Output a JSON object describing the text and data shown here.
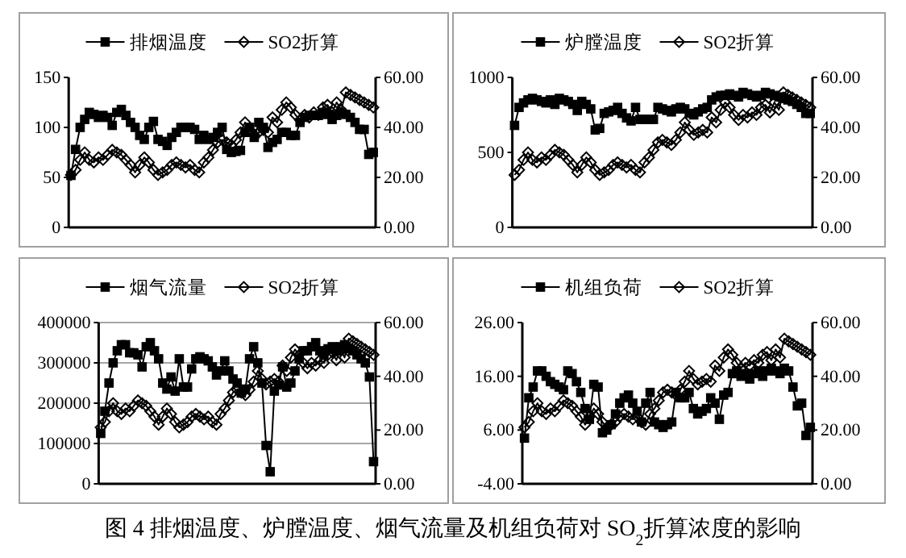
{
  "chart_data": [
    {
      "type": "line",
      "legend": "top",
      "categories": [
        null,
        null,
        null,
        null,
        null,
        null,
        null,
        null,
        null,
        null,
        null,
        null,
        null,
        null,
        null,
        null,
        null,
        null,
        null,
        null,
        null,
        null,
        null,
        null,
        null,
        null,
        null,
        null,
        null,
        null,
        null,
        null,
        null,
        null,
        null,
        null,
        null,
        null,
        null,
        null,
        null,
        null,
        null,
        null,
        null,
        null,
        null,
        null,
        null,
        null,
        null,
        null,
        null,
        null,
        null,
        null,
        null,
        null,
        null,
        null,
        null,
        null,
        null,
        null,
        null,
        null,
        null
      ],
      "ylim": [
        0,
        150
      ],
      "yticks": [
        0,
        50,
        100,
        150
      ],
      "y2lim": [
        0,
        60
      ],
      "y2ticks": [
        {
          "value": 0,
          "label": "0.00"
        },
        {
          "value": 20,
          "label": "20.00"
        },
        {
          "value": 40,
          "label": "40.00"
        },
        {
          "value": 60,
          "label": "60.00"
        }
      ],
      "series": [
        {
          "name": "排烟温度",
          "color": "#000000",
          "marker": "square",
          "values": [
            52,
            78,
            100,
            108,
            115,
            113,
            110,
            112,
            110,
            102,
            115,
            118,
            112,
            105,
            100,
            92,
            88,
            100,
            106,
            88,
            86,
            82,
            90,
            95,
            100,
            100,
            100,
            98,
            88,
            92,
            88,
            90,
            95,
            100,
            78,
            75,
            76,
            77,
            95,
            100,
            90,
            105,
            100,
            80,
            85,
            88,
            95,
            95,
            92,
            92,
            105,
            110,
            112,
            112,
            112,
            115,
            113,
            108,
            112,
            115,
            113,
            110,
            105,
            98,
            98,
            73,
            75
          ]
        },
        {
          "name": "SO2折算",
          "color": "#000000",
          "marker": "diamond",
          "axis": "y2",
          "values": [
            21,
            23,
            27,
            30,
            27,
            26,
            28,
            27,
            29,
            31,
            30,
            29,
            27,
            25,
            22,
            25,
            28,
            26,
            23,
            21,
            22,
            23,
            25,
            26,
            25,
            24,
            25,
            23,
            22,
            26,
            28,
            31,
            34,
            35,
            34,
            33,
            35,
            38,
            42,
            39,
            37,
            38,
            39,
            38,
            44,
            42,
            47,
            50,
            48,
            45,
            43,
            45,
            44,
            46,
            45,
            48,
            49,
            46,
            50,
            47,
            54,
            53,
            52,
            51,
            50,
            49,
            48
          ]
        }
      ]
    },
    {
      "type": "line",
      "legend": "top",
      "categories": [
        null,
        null,
        null,
        null,
        null,
        null,
        null,
        null,
        null,
        null,
        null,
        null,
        null,
        null,
        null,
        null,
        null,
        null,
        null,
        null,
        null,
        null,
        null,
        null,
        null,
        null,
        null,
        null,
        null,
        null,
        null,
        null,
        null,
        null,
        null,
        null,
        null,
        null,
        null,
        null,
        null,
        null,
        null,
        null,
        null,
        null,
        null,
        null,
        null,
        null,
        null,
        null,
        null,
        null,
        null,
        null,
        null,
        null,
        null,
        null,
        null,
        null,
        null,
        null,
        null,
        null,
        null
      ],
      "ylim": [
        0,
        1000
      ],
      "yticks": [
        0,
        500,
        1000
      ],
      "y2lim": [
        0,
        60
      ],
      "y2ticks": [
        {
          "value": 0,
          "label": "0.00"
        },
        {
          "value": 20,
          "label": "20.00"
        },
        {
          "value": 40,
          "label": "40.00"
        },
        {
          "value": 60,
          "label": "60.00"
        }
      ],
      "series": [
        {
          "name": "炉膛温度",
          "color": "#000000",
          "marker": "square",
          "values": [
            680,
            800,
            830,
            850,
            860,
            850,
            840,
            830,
            850,
            820,
            860,
            850,
            840,
            820,
            780,
            840,
            820,
            790,
            650,
            660,
            760,
            770,
            780,
            800,
            760,
            730,
            710,
            800,
            720,
            720,
            720,
            720,
            800,
            790,
            780,
            770,
            790,
            800,
            790,
            760,
            750,
            770,
            790,
            800,
            850,
            870,
            880,
            880,
            890,
            880,
            870,
            900,
            890,
            880,
            870,
            880,
            900,
            890,
            880,
            870,
            860,
            850,
            840,
            820,
            800,
            760,
            760
          ]
        },
        {
          "name": "SO2折算",
          "color": "#000000",
          "marker": "diamond",
          "axis": "y2",
          "values": [
            21,
            23,
            27,
            30,
            27,
            26,
            28,
            27,
            29,
            31,
            30,
            29,
            27,
            25,
            22,
            25,
            28,
            26,
            23,
            21,
            22,
            23,
            25,
            26,
            25,
            24,
            25,
            23,
            22,
            26,
            28,
            31,
            34,
            35,
            34,
            33,
            35,
            38,
            42,
            39,
            37,
            38,
            39,
            38,
            44,
            42,
            47,
            50,
            48,
            45,
            43,
            45,
            44,
            46,
            45,
            48,
            49,
            46,
            50,
            47,
            54,
            53,
            52,
            51,
            50,
            49,
            48
          ]
        }
      ]
    },
    {
      "type": "line",
      "legend": "top",
      "grid": "y",
      "categories": [
        null,
        null,
        null,
        null,
        null,
        null,
        null,
        null,
        null,
        null,
        null,
        null,
        null,
        null,
        null,
        null,
        null,
        null,
        null,
        null,
        null,
        null,
        null,
        null,
        null,
        null,
        null,
        null,
        null,
        null,
        null,
        null,
        null,
        null,
        null,
        null,
        null,
        null,
        null,
        null,
        null,
        null,
        null,
        null,
        null,
        null,
        null,
        null,
        null,
        null,
        null,
        null,
        null,
        null,
        null,
        null,
        null,
        null,
        null,
        null,
        null,
        null,
        null,
        null,
        null,
        null,
        null
      ],
      "ylim": [
        0,
        400000
      ],
      "yticks": [
        0,
        100000,
        200000,
        300000,
        400000
      ],
      "y2lim": [
        0,
        60
      ],
      "y2ticks": [
        {
          "value": 0,
          "label": "0.00"
        },
        {
          "value": 20,
          "label": "20.00"
        },
        {
          "value": 40,
          "label": "40.00"
        },
        {
          "value": 60,
          "label": "60.00"
        }
      ],
      "series": [
        {
          "name": "烟气流量",
          "color": "#000000",
          "marker": "square",
          "values": [
            125000,
            180000,
            250000,
            300000,
            330000,
            345000,
            345000,
            325000,
            325000,
            320000,
            290000,
            340000,
            350000,
            330000,
            310000,
            250000,
            235000,
            265000,
            230000,
            310000,
            240000,
            240000,
            285000,
            310000,
            315000,
            310000,
            305000,
            290000,
            270000,
            280000,
            305000,
            280000,
            260000,
            250000,
            225000,
            235000,
            310000,
            340000,
            300000,
            250000,
            95000,
            30000,
            230000,
            245000,
            290000,
            240000,
            250000,
            280000,
            310000,
            330000,
            330000,
            340000,
            350000,
            330000,
            320000,
            335000,
            340000,
            330000,
            340000,
            345000,
            335000,
            330000,
            320000,
            310000,
            300000,
            265000,
            55000
          ]
        },
        {
          "name": "SO2折算",
          "color": "#000000",
          "marker": "diamond",
          "axis": "y2",
          "values": [
            21,
            23,
            27,
            30,
            27,
            26,
            28,
            27,
            29,
            31,
            30,
            29,
            27,
            25,
            22,
            25,
            28,
            26,
            23,
            21,
            22,
            23,
            25,
            26,
            25,
            24,
            25,
            23,
            22,
            26,
            28,
            31,
            34,
            35,
            34,
            33,
            35,
            38,
            42,
            39,
            37,
            38,
            39,
            38,
            44,
            42,
            47,
            50,
            48,
            45,
            43,
            45,
            44,
            46,
            45,
            48,
            49,
            46,
            50,
            47,
            54,
            53,
            52,
            51,
            50,
            49,
            48
          ]
        }
      ]
    },
    {
      "type": "line",
      "legend": "top",
      "categories": [
        null,
        null,
        null,
        null,
        null,
        null,
        null,
        null,
        null,
        null,
        null,
        null,
        null,
        null,
        null,
        null,
        null,
        null,
        null,
        null,
        null,
        null,
        null,
        null,
        null,
        null,
        null,
        null,
        null,
        null,
        null,
        null,
        null,
        null,
        null,
        null,
        null,
        null,
        null,
        null,
        null,
        null,
        null,
        null,
        null,
        null,
        null,
        null,
        null,
        null,
        null,
        null,
        null,
        null,
        null,
        null,
        null,
        null,
        null,
        null,
        null,
        null,
        null,
        null,
        null,
        null,
        null
      ],
      "ylim": [
        -4,
        26
      ],
      "yticks": [
        {
          "value": -4,
          "label": "-4.00"
        },
        {
          "value": 6,
          "label": "6.00"
        },
        {
          "value": 16,
          "label": "16.00"
        },
        {
          "value": 26,
          "label": "26.00"
        }
      ],
      "y2lim": [
        0,
        60
      ],
      "y2ticks": [
        {
          "value": 0,
          "label": "0.00"
        },
        {
          "value": 20,
          "label": "20.00"
        },
        {
          "value": 40,
          "label": "40.00"
        },
        {
          "value": 60,
          "label": "60.00"
        }
      ],
      "annotations": [
        "图 4 排烟温度、炉膛温度、烟气流量及机组负荷对 SO$_{2}$折算浓度的影响"
      ],
      "series": [
        {
          "name": "机组负荷",
          "color": "#000000",
          "marker": "square",
          "values": [
            4.5,
            12,
            14,
            17,
            17,
            16,
            15,
            14.5,
            14,
            13.5,
            17,
            16.5,
            15,
            13,
            10,
            8,
            14.5,
            14,
            5.5,
            6,
            7,
            9,
            11,
            12,
            12.5,
            11,
            9.5,
            7.5,
            11,
            13,
            7.5,
            7,
            6.5,
            7,
            7.5,
            13,
            12,
            12,
            13,
            10,
            9,
            9.5,
            10,
            12,
            11,
            8,
            12.5,
            13,
            16.5,
            17,
            16,
            16.5,
            15.5,
            16.5,
            17,
            16,
            17,
            17.5,
            17,
            16.5,
            17.5,
            17,
            14,
            10.5,
            11,
            5,
            6.5
          ]
        },
        {
          "name": "SO2折算",
          "color": "#000000",
          "marker": "diamond",
          "axis": "y2",
          "values": [
            21,
            23,
            27,
            30,
            27,
            26,
            28,
            27,
            29,
            31,
            30,
            29,
            27,
            25,
            22,
            25,
            28,
            26,
            23,
            21,
            22,
            23,
            25,
            26,
            25,
            24,
            25,
            23,
            22,
            26,
            28,
            31,
            34,
            35,
            34,
            33,
            35,
            38,
            42,
            39,
            37,
            38,
            39,
            38,
            44,
            42,
            47,
            50,
            48,
            45,
            43,
            45,
            44,
            46,
            45,
            48,
            49,
            46,
            50,
            47,
            54,
            53,
            52,
            51,
            50,
            49,
            48
          ]
        }
      ]
    }
  ]
}
